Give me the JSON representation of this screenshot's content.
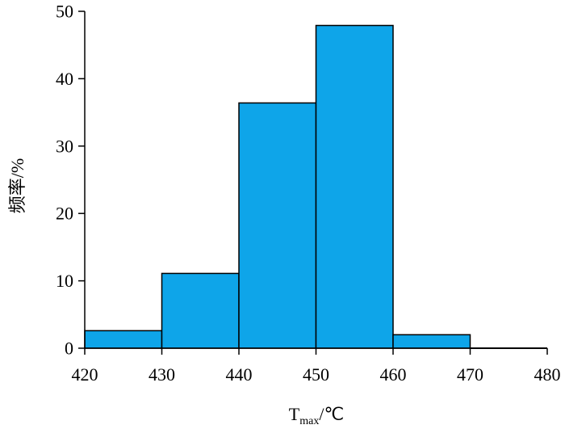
{
  "chart_data": {
    "type": "bar",
    "title": "",
    "xlabel": "T",
    "xlabel_sub": "max",
    "xlabel_unit": "/℃",
    "ylabel": "频率/%",
    "xlim": [
      420,
      480
    ],
    "ylim": [
      0,
      50
    ],
    "x_ticks": [
      "420",
      "430",
      "440",
      "450",
      "460",
      "470",
      "480"
    ],
    "y_ticks": [
      "0",
      "10",
      "20",
      "30",
      "40",
      "50"
    ],
    "bins": [
      {
        "from": 420,
        "to": 430,
        "value": 2.6
      },
      {
        "from": 430,
        "to": 440,
        "value": 11.1
      },
      {
        "from": 440,
        "to": 450,
        "value": 36.4
      },
      {
        "from": 450,
        "to": 460,
        "value": 47.9
      },
      {
        "from": 460,
        "to": 470,
        "value": 2.0
      },
      {
        "from": 470,
        "to": 480,
        "value": 0
      }
    ],
    "bar_color": "#0ea5e9",
    "bar_stroke": "#000000",
    "grid": false,
    "legend": "none"
  }
}
